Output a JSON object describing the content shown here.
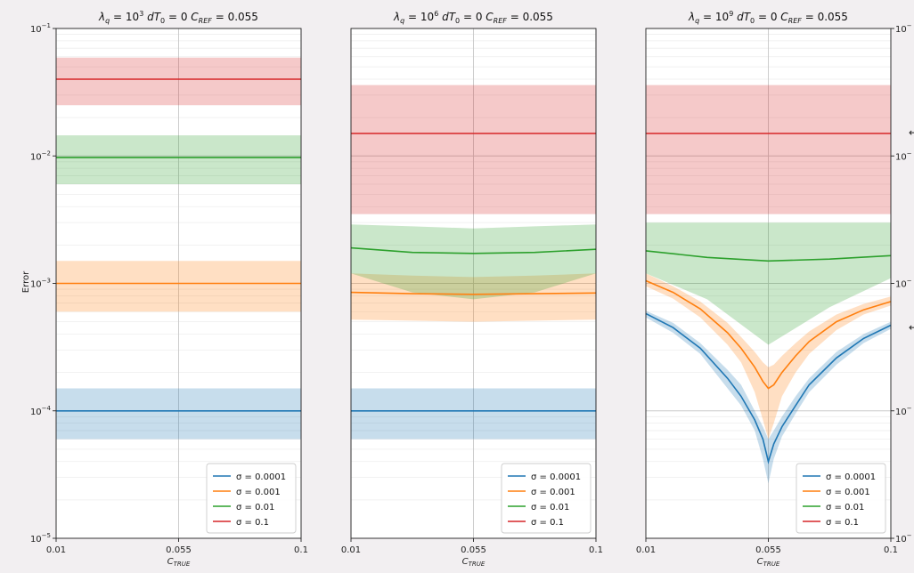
{
  "chart_data": [
    {
      "type": "line",
      "title": "λq=10³   dT₀=0   C_REF=0.055",
      "title_parts": {
        "lambda": "λ",
        "lambda_sub": "q",
        "lambda_eq": " = 10",
        "lambda_exp": "3",
        "dt_label": "dT",
        "dt_sub": "0",
        "dt_eq": " = 0",
        "cref_label": "C",
        "cref_sub": "REF",
        "cref_eq": " = 0.055"
      },
      "xlabel": "C",
      "xlabel_sub": "TRUE",
      "ylabel": "Error",
      "yscale": "log",
      "ylim": [
        1e-05,
        0.1
      ],
      "xlim": [
        0.01,
        0.1
      ],
      "xticks": [
        {
          "v": 0.01,
          "label": "0.01"
        },
        {
          "v": 0.055,
          "label": "0.055"
        },
        {
          "v": 0.1,
          "label": "0.1"
        }
      ],
      "yticks": [
        {
          "base": "10",
          "exp": "−1"
        },
        {
          "base": "10",
          "exp": "−2"
        },
        {
          "base": "10",
          "exp": "−3"
        },
        {
          "base": "10",
          "exp": "−4"
        },
        {
          "base": "10",
          "exp": "−5"
        }
      ],
      "grid": true,
      "legend_position": "lower right",
      "series": [
        {
          "name": "σ = 0.0001",
          "color": "#1f77b4",
          "x": [
            0.01,
            0.055,
            0.1
          ],
          "y": [
            0.0001,
            0.0001,
            0.0001
          ],
          "lower": [
            6e-05,
            6e-05,
            6e-05
          ],
          "upper": [
            0.00015,
            0.00015,
            0.00015
          ]
        },
        {
          "name": "σ = 0.001",
          "color": "#ff7f0e",
          "x": [
            0.01,
            0.055,
            0.1
          ],
          "y": [
            0.001,
            0.001,
            0.001
          ],
          "lower": [
            0.0006,
            0.0006,
            0.0006
          ],
          "upper": [
            0.0015,
            0.0015,
            0.0015
          ]
        },
        {
          "name": "σ = 0.01",
          "color": "#2ca02c",
          "x": [
            0.01,
            0.055,
            0.1
          ],
          "y": [
            0.0097,
            0.0097,
            0.0097
          ],
          "lower": [
            0.006,
            0.006,
            0.006
          ],
          "upper": [
            0.0145,
            0.0145,
            0.0145
          ]
        },
        {
          "name": "σ = 0.1",
          "color": "#d62728",
          "x": [
            0.01,
            0.055,
            0.1
          ],
          "y": [
            0.04,
            0.04,
            0.04
          ],
          "lower": [
            0.025,
            0.025,
            0.025
          ],
          "upper": [
            0.059,
            0.059,
            0.059
          ]
        }
      ]
    },
    {
      "type": "line",
      "title": "λq=10⁶   dT₀=0   C_REF=0.055",
      "title_parts": {
        "lambda": "λ",
        "lambda_sub": "q",
        "lambda_eq": " = 10",
        "lambda_exp": "6",
        "dt_label": "dT",
        "dt_sub": "0",
        "dt_eq": " = 0",
        "cref_label": "C",
        "cref_sub": "REF",
        "cref_eq": " = 0.055"
      },
      "xlabel": "C",
      "xlabel_sub": "TRUE",
      "ylabel": "",
      "yscale": "log",
      "ylim": [
        1e-05,
        0.1
      ],
      "xlim": [
        0.01,
        0.1
      ],
      "xticks": [
        {
          "v": 0.01,
          "label": "0.01"
        },
        {
          "v": 0.055,
          "label": "0.055"
        },
        {
          "v": 0.1,
          "label": "0.1"
        }
      ],
      "yticks": [],
      "grid": true,
      "legend_position": "lower right",
      "series": [
        {
          "name": "σ = 0.0001",
          "color": "#1f77b4",
          "x": [
            0.01,
            0.055,
            0.1
          ],
          "y": [
            0.0001,
            0.0001,
            0.0001
          ],
          "lower": [
            6e-05,
            6e-05,
            6e-05
          ],
          "upper": [
            0.00015,
            0.00015,
            0.00015
          ]
        },
        {
          "name": "σ = 0.001",
          "color": "#ff7f0e",
          "x": [
            0.01,
            0.0325,
            0.055,
            0.0775,
            0.1
          ],
          "y": [
            0.00085,
            0.00083,
            0.00082,
            0.00083,
            0.00084
          ],
          "lower": [
            0.00052,
            0.00051,
            0.0005,
            0.00051,
            0.00052
          ],
          "upper": [
            0.0012,
            0.00115,
            0.00112,
            0.00115,
            0.0012
          ]
        },
        {
          "name": "σ = 0.01",
          "color": "#2ca02c",
          "x": [
            0.01,
            0.0325,
            0.055,
            0.0775,
            0.1
          ],
          "y": [
            0.0019,
            0.00175,
            0.00172,
            0.00175,
            0.00185
          ],
          "lower": [
            0.0012,
            0.00085,
            0.00075,
            0.00085,
            0.0012
          ],
          "upper": [
            0.0029,
            0.0028,
            0.0027,
            0.0028,
            0.0029
          ]
        },
        {
          "name": "σ = 0.1",
          "color": "#d62728",
          "x": [
            0.01,
            0.055,
            0.1
          ],
          "y": [
            0.015,
            0.015,
            0.015
          ],
          "lower": [
            0.0035,
            0.0035,
            0.0035
          ],
          "upper": [
            0.036,
            0.036,
            0.036
          ]
        }
      ]
    },
    {
      "type": "line",
      "title": "λq=10⁹   dT₀=0   C_REF=0.055",
      "title_parts": {
        "lambda": "λ",
        "lambda_sub": "q",
        "lambda_eq": " = 10",
        "lambda_exp": "9",
        "dt_label": "dT",
        "dt_sub": "0",
        "dt_eq": " = 0",
        "cref_label": "C",
        "cref_sub": "REF",
        "cref_eq": " = 0.055"
      },
      "xlabel": "C",
      "xlabel_sub": "TRUE",
      "ylabel": "",
      "yscale": "log",
      "ylim": [
        1e-05,
        0.1
      ],
      "xlim": [
        0.01,
        0.1
      ],
      "xticks": [
        {
          "v": 0.01,
          "label": "0.01"
        },
        {
          "v": 0.055,
          "label": "0.055"
        },
        {
          "v": 0.1,
          "label": "0.1"
        }
      ],
      "yticks_right": [
        {
          "base": "10",
          "exp": "−"
        },
        {
          "base": "10",
          "exp": "−"
        },
        {
          "base": "10",
          "exp": "−"
        },
        {
          "base": "10",
          "exp": "−"
        },
        {
          "base": "10",
          "exp": "−"
        }
      ],
      "grid": true,
      "legend_position": "lower right",
      "series": [
        {
          "name": "σ = 0.0001",
          "color": "#1f77b4",
          "x": [
            0.01,
            0.02,
            0.03,
            0.04,
            0.045,
            0.05,
            0.053,
            0.055,
            0.057,
            0.06,
            0.065,
            0.07,
            0.08,
            0.09,
            0.1
          ],
          "y": [
            0.00058,
            0.00045,
            0.00031,
            0.00018,
            0.00013,
            8.5e-05,
            6e-05,
            4e-05,
            5.5e-05,
            7.5e-05,
            0.00011,
            0.00016,
            0.00026,
            0.00037,
            0.00047
          ],
          "lower": [
            0.00054,
            0.00041,
            0.00028,
            0.00015,
            0.00011,
            7e-05,
            4.2e-05,
            2.7e-05,
            4.2e-05,
            6.3e-05,
            9.5e-05,
            0.00014,
            0.00023,
            0.00034,
            0.00044
          ],
          "upper": [
            0.00061,
            0.00049,
            0.00034,
            0.00021,
            0.00016,
            0.0001,
            7.5e-05,
            6e-05,
            7e-05,
            9e-05,
            0.00013,
            0.00018,
            0.00029,
            0.0004,
            0.0005
          ]
        },
        {
          "name": "σ = 0.001",
          "color": "#ff7f0e",
          "x": [
            0.01,
            0.02,
            0.03,
            0.04,
            0.045,
            0.05,
            0.053,
            0.055,
            0.057,
            0.06,
            0.065,
            0.07,
            0.08,
            0.09,
            0.1
          ],
          "y": [
            0.00105,
            0.00085,
            0.00063,
            0.00041,
            0.00031,
            0.00022,
            0.00017,
            0.00015,
            0.00016,
            0.0002,
            0.00027,
            0.00035,
            0.0005,
            0.00062,
            0.00072
          ],
          "lower": [
            0.00095,
            0.00076,
            0.00054,
            0.00033,
            0.00024,
            0.00014,
            8.5e-05,
            6e-05,
            8e-05,
            0.00013,
            0.0002,
            0.00028,
            0.00043,
            0.00057,
            0.00067
          ],
          "upper": [
            0.0012,
            0.00095,
            0.00072,
            0.00049,
            0.00038,
            0.00029,
            0.00024,
            0.00022,
            0.00023,
            0.00027,
            0.00034,
            0.00042,
            0.00057,
            0.00069,
            0.00079
          ]
        },
        {
          "name": "σ = 0.01",
          "color": "#2ca02c",
          "x": [
            0.01,
            0.0325,
            0.055,
            0.0775,
            0.1
          ],
          "y": [
            0.0018,
            0.0016,
            0.0015,
            0.00155,
            0.00165
          ],
          "lower": [
            0.0012,
            0.00075,
            0.00033,
            0.00065,
            0.0011
          ],
          "upper": [
            0.003,
            0.003,
            0.003,
            0.003,
            0.003
          ]
        },
        {
          "name": "σ = 0.1",
          "color": "#d62728",
          "x": [
            0.01,
            0.055,
            0.1
          ],
          "y": [
            0.015,
            0.015,
            0.015
          ],
          "lower": [
            0.0035,
            0.0035,
            0.0035
          ],
          "upper": [
            0.036,
            0.036,
            0.036
          ]
        }
      ]
    }
  ]
}
